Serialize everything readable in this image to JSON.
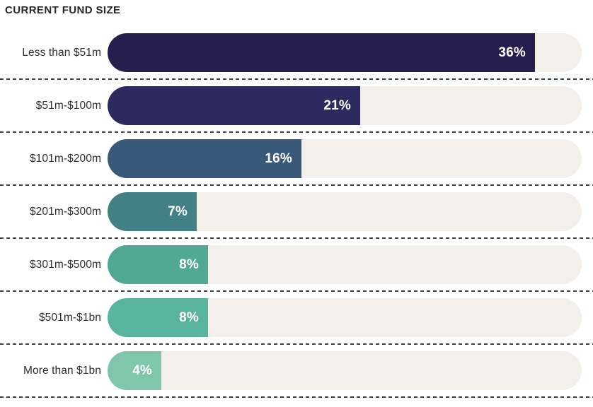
{
  "chart_data": {
    "type": "bar",
    "orientation": "horizontal",
    "title": "CURRENT FUND SIZE",
    "categories": [
      "Less than $51m",
      "$51m-$100m",
      "$101m-$200m",
      "$201m-$300m",
      "$301m-$500m",
      "$501m-$1bn",
      "More than $1bn"
    ],
    "values": [
      36,
      21,
      16,
      7,
      8,
      8,
      4
    ],
    "value_labels": [
      "36%",
      "21%",
      "16%",
      "7%",
      "8%",
      "8%",
      "4%"
    ],
    "unit": "%",
    "xlim": [
      0,
      40
    ],
    "grid": false,
    "legend": "none",
    "bar_colors": [
      "#261f4e",
      "#2c2a5e",
      "#38597a",
      "#418084",
      "#50a895",
      "#58b49e",
      "#80c6ad"
    ],
    "track_color": "#f3efeb",
    "separator_color": "#3f3f3f",
    "value_label_color": "#ffffff",
    "category_label_color": "#2e2e2e",
    "title_color": "#282828"
  }
}
